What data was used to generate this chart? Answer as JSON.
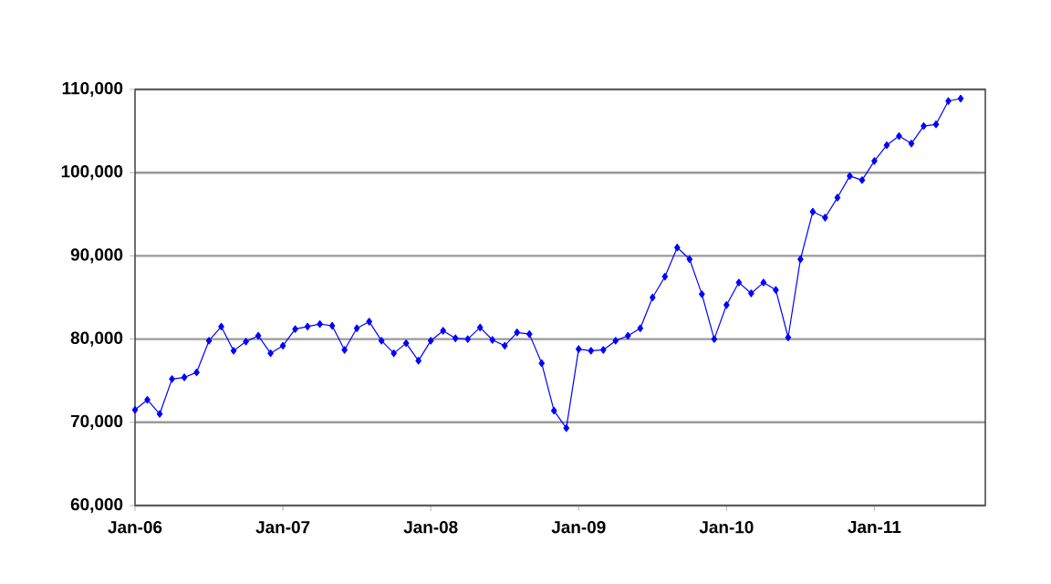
{
  "chart_data": {
    "type": "line",
    "color": "#0000ff",
    "marker": "diamond",
    "line_style": "solid",
    "grid": "y",
    "x": [
      "2006-01",
      "2006-02",
      "2006-03",
      "2006-04",
      "2006-05",
      "2006-06",
      "2006-07",
      "2006-08",
      "2006-09",
      "2006-10",
      "2006-11",
      "2006-12",
      "2007-01",
      "2007-02",
      "2007-03",
      "2007-04",
      "2007-05",
      "2007-06",
      "2007-07",
      "2007-08",
      "2007-09",
      "2007-10",
      "2007-11",
      "2007-12",
      "2008-01",
      "2008-02",
      "2008-03",
      "2008-04",
      "2008-05",
      "2008-06",
      "2008-07",
      "2008-08",
      "2008-09",
      "2008-10",
      "2008-11",
      "2008-12",
      "2009-01",
      "2009-02",
      "2009-03",
      "2009-04",
      "2009-05",
      "2009-06",
      "2009-07",
      "2009-08",
      "2009-09",
      "2009-10",
      "2009-11",
      "2009-12",
      "2010-01",
      "2010-02",
      "2010-03",
      "2010-04",
      "2010-05",
      "2010-06",
      "2010-07",
      "2010-08",
      "2010-09",
      "2010-10",
      "2010-11",
      "2010-12",
      "2011-01",
      "2011-02",
      "2011-03",
      "2011-04",
      "2011-05",
      "2011-06",
      "2011-07",
      "2011-08"
    ],
    "values": [
      71500,
      72700,
      71000,
      75200,
      75400,
      76000,
      79800,
      81500,
      78600,
      79700,
      80400,
      78300,
      79200,
      81200,
      81500,
      81800,
      81600,
      78700,
      81300,
      82100,
      79800,
      78300,
      79500,
      77400,
      79800,
      81000,
      80100,
      80000,
      81400,
      79900,
      79200,
      80800,
      80600,
      77100,
      71400,
      69300,
      78800,
      78600,
      78700,
      79800,
      80400,
      81300,
      85000,
      87500,
      91000,
      89600,
      85400,
      80000,
      84100,
      86800,
      85500,
      86800,
      85900,
      80200,
      89600,
      95300,
      94600,
      97000,
      99600,
      99100,
      101400,
      103300,
      104400,
      103500,
      105600,
      105800,
      108600,
      108900
    ],
    "xlim": [
      "2006-01",
      "2011-10"
    ],
    "xticks": [
      {
        "value": "2006-01",
        "label": "Jan-06"
      },
      {
        "value": "2007-01",
        "label": "Jan-07"
      },
      {
        "value": "2008-01",
        "label": "Jan-08"
      },
      {
        "value": "2009-01",
        "label": "Jan-09"
      },
      {
        "value": "2010-01",
        "label": "Jan-10"
      },
      {
        "value": "2011-01",
        "label": "Jan-11"
      }
    ],
    "ylim": [
      60000,
      110000
    ],
    "yticks": [
      {
        "value": 60000,
        "label": "60,000"
      },
      {
        "value": 70000,
        "label": "70,000"
      },
      {
        "value": 80000,
        "label": "80,000"
      },
      {
        "value": 90000,
        "label": "90,000"
      },
      {
        "value": 100000,
        "label": "100,000"
      },
      {
        "value": 110000,
        "label": "110,000"
      }
    ]
  }
}
